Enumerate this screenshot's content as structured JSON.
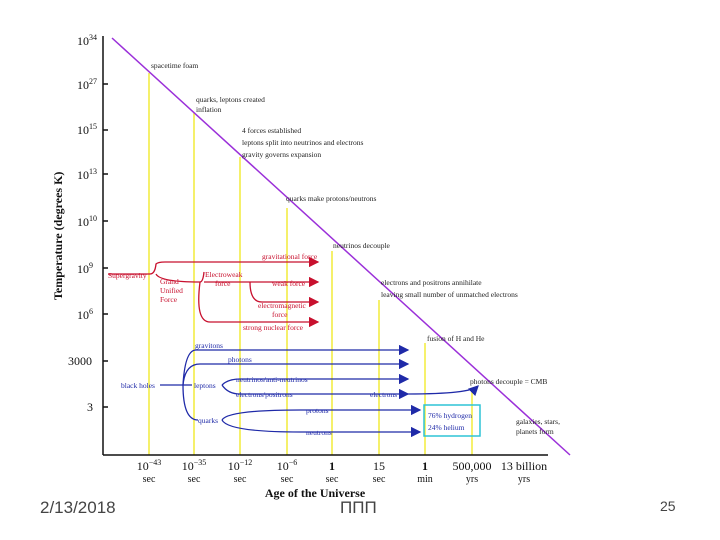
{
  "diagram": {
    "y_axis_label": "Temperature (degrees K)",
    "x_axis_label": "Age of the Universe",
    "y_ticks": [
      {
        "base": "10",
        "exp": "34"
      },
      {
        "base": "10",
        "exp": "27"
      },
      {
        "base": "10",
        "exp": "15"
      },
      {
        "base": "10",
        "exp": "13"
      },
      {
        "base": "10",
        "exp": "10"
      },
      {
        "base": "10",
        "exp": "9"
      },
      {
        "base": "10",
        "exp": "6"
      },
      {
        "base": "3000",
        "exp": ""
      },
      {
        "base": "3",
        "exp": ""
      }
    ],
    "x_ticks": [
      {
        "top": "10",
        "exp": "−43",
        "unit": "sec"
      },
      {
        "top": "10",
        "exp": "−35",
        "unit": "sec"
      },
      {
        "top": "10",
        "exp": "−12",
        "unit": "sec"
      },
      {
        "top": "10",
        "exp": "−6",
        "unit": "sec"
      },
      {
        "top": "1",
        "exp": "",
        "unit": "sec"
      },
      {
        "top": "15",
        "exp": "",
        "unit": "sec"
      },
      {
        "top": "1",
        "exp": "",
        "unit": "min"
      },
      {
        "top": "500,000",
        "exp": "",
        "unit": "yrs"
      },
      {
        "top": "13 billion",
        "exp": "",
        "unit": "yrs"
      }
    ],
    "events": {
      "spacetime": "spacetime foam",
      "quarks1": "quarks, leptons created",
      "quarks2": "inflation",
      "forces1": "4 forces established",
      "forces2": "leptons split into neutrinos and electrons",
      "forces3": "gravity governs expansion",
      "protons": "quarks make protons/neutrons",
      "neutrinos": "neutrinos decouple",
      "annihilate1": "electrons and positrons annihilate",
      "annihilate2": "leaving small number of unmatched electrons",
      "fusion": "fusion of H and He",
      "cmb": "photons decouple = CMB",
      "galaxies1": "galaxies, stars,",
      "galaxies2": "planets form"
    },
    "forces": {
      "supergravity": "Supergravity",
      "gut1": "Grand",
      "gut2": "Unified",
      "gut3": "Force",
      "electroweak1": "Electroweak",
      "electroweak2": "force",
      "gravitational": "gravitational force",
      "weak": "weak force",
      "em1": "electromagnetic",
      "em2": "force",
      "strong": "strong nuclear force"
    },
    "particles": {
      "gravitons": "gravitons",
      "photons": "photons",
      "black_holes": "black holes",
      "leptons": "leptons",
      "neutrinos": "neutrinos/anti-neutrinos",
      "electrons_positrons": "electrons/positrons",
      "electrons": "electrons",
      "quarks": "quarks",
      "protons": "protons",
      "neutrons": "neutrons",
      "hydrogen": "76% hydrogen",
      "helium": "24% helium"
    },
    "colors": {
      "diagonal": "#9b30d9",
      "vertical": "#f2ec3a",
      "force": "#c8102e",
      "particle": "#1f2aa8",
      "box": "#2ec4d6",
      "axis": "#111111"
    }
  },
  "footer": {
    "date": "2/13/2018",
    "center": "ППП",
    "page": "25"
  }
}
